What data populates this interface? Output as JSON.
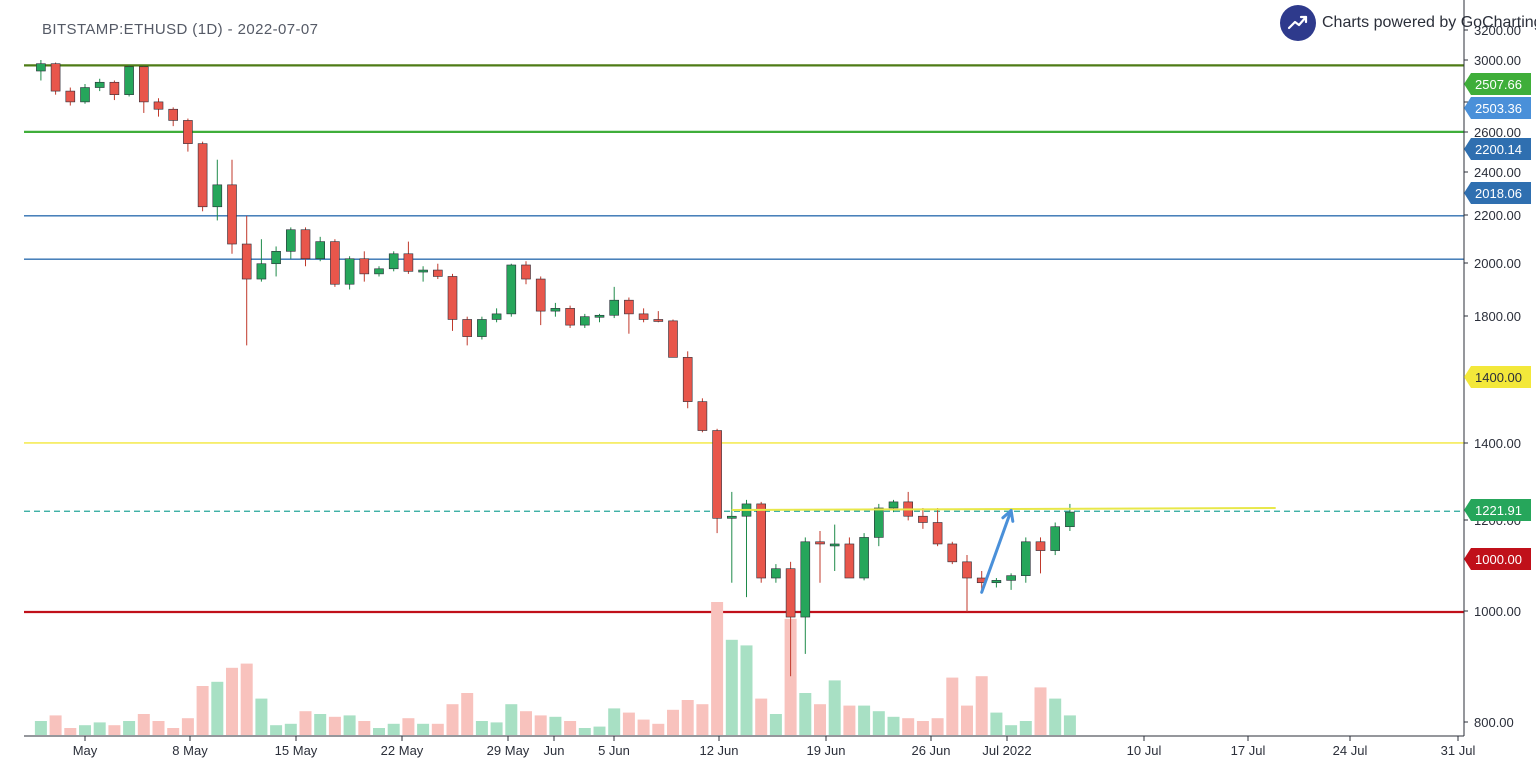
{
  "header": {
    "symbol_label": "BITSTAMP:ETHUSD (1D) - 2022-07-07",
    "powered_by": "Charts powered by GoCharting"
  },
  "chart_data": {
    "type": "candlestick",
    "y_axis_ticks": [
      "3200.00",
      "3000.00",
      "2800.00",
      "2600.00",
      "2400.00",
      "2200.00",
      "2000.00",
      "1800.00",
      "1400.00",
      "1200.00",
      "1000.00",
      "800.00"
    ],
    "x_axis_ticks": [
      "May",
      "8 May",
      "15 May",
      "22 May",
      "29 May",
      "Jun",
      "5 Jun",
      "12 Jun",
      "19 Jun",
      "26 Jun",
      "Jul 2022",
      "10 Jul",
      "17 Jul",
      "24 Jul",
      "31 Jul"
    ],
    "price_badges": [
      {
        "label": "2507.66",
        "color": "#3fae3a",
        "text_color": "#ffffff"
      },
      {
        "label": "2503.36",
        "color": "#4a90d9",
        "text_color": "#ffffff"
      },
      {
        "label": "2200.14",
        "color": "#2f6fb0",
        "text_color": "#ffffff"
      },
      {
        "label": "2018.06",
        "color": "#2f6fb0",
        "text_color": "#ffffff"
      },
      {
        "label": "1400.00",
        "color": "#f3e83a",
        "text_color": "#2b2f3a"
      },
      {
        "label": "1221.91",
        "color": "#26a65b",
        "text_color": "#ffffff"
      },
      {
        "label": "1000.00",
        "color": "#c0101a",
        "text_color": "#ffffff"
      }
    ],
    "horizontal_lines": [
      {
        "price": 2968,
        "color": "#4e7c16",
        "style": "solid"
      },
      {
        "price": 2600,
        "color": "#3fae3a",
        "style": "solid"
      },
      {
        "price": 2200,
        "color": "#2f6fb0",
        "style": "solid"
      },
      {
        "price": 2018,
        "color": "#2f6fb0",
        "style": "solid"
      },
      {
        "price": 1400,
        "color": "#f3e83a",
        "style": "solid"
      },
      {
        "price": 1222,
        "color": "#26a69a",
        "style": "dashed"
      },
      {
        "price": 1000,
        "color": "#c0101a",
        "style": "solid"
      }
    ],
    "trendline": {
      "from": [
        "2022-06-14",
        1225
      ],
      "to": [
        "2022-07-21",
        1230
      ],
      "color": "#e8e84a"
    },
    "arrow": {
      "from": [
        "2022-07-01",
        1040
      ],
      "to": [
        "2022-07-03",
        1224
      ],
      "color": "#4a90d9"
    },
    "colors": {
      "up": "#26a65b",
      "down": "#e8564b",
      "vol_up": "#a8e0c4",
      "vol_down": "#f8c2bd"
    },
    "candles": [
      {
        "date": "2022-04-28",
        "o": 2935,
        "h": 3000,
        "l": 2880,
        "c": 2978,
        "v": 0.1
      },
      {
        "date": "2022-04-29",
        "o": 2978,
        "h": 2985,
        "l": 2800,
        "c": 2820,
        "v": 0.14
      },
      {
        "date": "2022-04-30",
        "o": 2820,
        "h": 2840,
        "l": 2740,
        "c": 2760,
        "v": 0.05
      },
      {
        "date": "2022-05-01",
        "o": 2760,
        "h": 2860,
        "l": 2750,
        "c": 2840,
        "v": 0.07
      },
      {
        "date": "2022-05-02",
        "o": 2840,
        "h": 2890,
        "l": 2820,
        "c": 2870,
        "v": 0.09
      },
      {
        "date": "2022-05-03",
        "o": 2870,
        "h": 2880,
        "l": 2770,
        "c": 2800,
        "v": 0.07
      },
      {
        "date": "2022-05-04",
        "o": 2800,
        "h": 2970,
        "l": 2790,
        "c": 2960,
        "v": 0.1
      },
      {
        "date": "2022-05-05",
        "o": 2960,
        "h": 2965,
        "l": 2700,
        "c": 2760,
        "v": 0.15
      },
      {
        "date": "2022-05-06",
        "o": 2760,
        "h": 2780,
        "l": 2680,
        "c": 2720,
        "v": 0.1
      },
      {
        "date": "2022-05-07",
        "o": 2720,
        "h": 2730,
        "l": 2630,
        "c": 2660,
        "v": 0.05
      },
      {
        "date": "2022-05-08",
        "o": 2660,
        "h": 2670,
        "l": 2500,
        "c": 2540,
        "v": 0.12
      },
      {
        "date": "2022-05-09",
        "o": 2540,
        "h": 2550,
        "l": 2220,
        "c": 2240,
        "v": 0.35
      },
      {
        "date": "2022-05-10",
        "o": 2240,
        "h": 2460,
        "l": 2180,
        "c": 2340,
        "v": 0.38
      },
      {
        "date": "2022-05-11",
        "o": 2340,
        "h": 2460,
        "l": 2040,
        "c": 2080,
        "v": 0.48
      },
      {
        "date": "2022-05-12",
        "o": 2080,
        "h": 2200,
        "l": 1700,
        "c": 1940,
        "v": 0.51
      },
      {
        "date": "2022-05-13",
        "o": 1940,
        "h": 2100,
        "l": 1930,
        "c": 2000,
        "v": 0.26
      },
      {
        "date": "2022-05-14",
        "o": 2000,
        "h": 2070,
        "l": 1950,
        "c": 2050,
        "v": 0.07
      },
      {
        "date": "2022-05-15",
        "o": 2050,
        "h": 2150,
        "l": 2020,
        "c": 2140,
        "v": 0.08
      },
      {
        "date": "2022-05-16",
        "o": 2140,
        "h": 2150,
        "l": 1990,
        "c": 2020,
        "v": 0.17
      },
      {
        "date": "2022-05-17",
        "o": 2020,
        "h": 2110,
        "l": 2010,
        "c": 2090,
        "v": 0.15
      },
      {
        "date": "2022-05-18",
        "o": 2090,
        "h": 2100,
        "l": 1910,
        "c": 1920,
        "v": 0.13
      },
      {
        "date": "2022-05-19",
        "o": 1920,
        "h": 2030,
        "l": 1900,
        "c": 2020,
        "v": 0.14
      },
      {
        "date": "2022-05-20",
        "o": 2020,
        "h": 2050,
        "l": 1930,
        "c": 1960,
        "v": 0.1
      },
      {
        "date": "2022-05-21",
        "o": 1960,
        "h": 1990,
        "l": 1950,
        "c": 1980,
        "v": 0.05
      },
      {
        "date": "2022-05-22",
        "o": 1980,
        "h": 2050,
        "l": 1970,
        "c": 2040,
        "v": 0.08
      },
      {
        "date": "2022-05-23",
        "o": 2040,
        "h": 2090,
        "l": 1960,
        "c": 1970,
        "v": 0.12
      },
      {
        "date": "2022-05-24",
        "o": 1970,
        "h": 1990,
        "l": 1930,
        "c": 1975,
        "v": 0.08
      },
      {
        "date": "2022-05-25",
        "o": 1975,
        "h": 2000,
        "l": 1940,
        "c": 1950,
        "v": 0.08
      },
      {
        "date": "2022-05-26",
        "o": 1950,
        "h": 1960,
        "l": 1750,
        "c": 1790,
        "v": 0.22
      },
      {
        "date": "2022-05-27",
        "o": 1790,
        "h": 1800,
        "l": 1700,
        "c": 1730,
        "v": 0.3
      },
      {
        "date": "2022-05-28",
        "o": 1730,
        "h": 1800,
        "l": 1720,
        "c": 1790,
        "v": 0.1
      },
      {
        "date": "2022-05-29",
        "o": 1790,
        "h": 1830,
        "l": 1780,
        "c": 1810,
        "v": 0.09
      },
      {
        "date": "2022-05-30",
        "o": 1810,
        "h": 2000,
        "l": 1800,
        "c": 1995,
        "v": 0.22
      },
      {
        "date": "2022-05-31",
        "o": 1995,
        "h": 2010,
        "l": 1920,
        "c": 1940,
        "v": 0.17
      },
      {
        "date": "2022-06-01",
        "o": 1940,
        "h": 1950,
        "l": 1770,
        "c": 1820,
        "v": 0.14
      },
      {
        "date": "2022-06-02",
        "o": 1820,
        "h": 1850,
        "l": 1800,
        "c": 1830,
        "v": 0.13
      },
      {
        "date": "2022-06-03",
        "o": 1830,
        "h": 1840,
        "l": 1760,
        "c": 1770,
        "v": 0.1
      },
      {
        "date": "2022-06-04",
        "o": 1770,
        "h": 1810,
        "l": 1760,
        "c": 1800,
        "v": 0.05
      },
      {
        "date": "2022-06-05",
        "o": 1800,
        "h": 1810,
        "l": 1780,
        "c": 1805,
        "v": 0.06
      },
      {
        "date": "2022-06-06",
        "o": 1805,
        "h": 1910,
        "l": 1795,
        "c": 1860,
        "v": 0.19
      },
      {
        "date": "2022-06-07",
        "o": 1860,
        "h": 1870,
        "l": 1740,
        "c": 1810,
        "v": 0.16
      },
      {
        "date": "2022-06-08",
        "o": 1810,
        "h": 1830,
        "l": 1780,
        "c": 1790,
        "v": 0.11
      },
      {
        "date": "2022-06-09",
        "o": 1790,
        "h": 1820,
        "l": 1780,
        "c": 1785,
        "v": 0.08
      },
      {
        "date": "2022-06-10",
        "o": 1785,
        "h": 1790,
        "l": 1660,
        "c": 1660,
        "v": 0.18
      },
      {
        "date": "2022-06-11",
        "o": 1660,
        "h": 1680,
        "l": 1500,
        "c": 1520,
        "v": 0.25
      },
      {
        "date": "2022-06-12",
        "o": 1520,
        "h": 1530,
        "l": 1430,
        "c": 1435,
        "v": 0.22
      },
      {
        "date": "2022-06-13",
        "o": 1435,
        "h": 1440,
        "l": 1170,
        "c": 1205,
        "v": 0.95
      },
      {
        "date": "2022-06-14",
        "o": 1205,
        "h": 1270,
        "l": 1060,
        "c": 1210,
        "v": 0.68
      },
      {
        "date": "2022-06-15",
        "o": 1210,
        "h": 1250,
        "l": 1030,
        "c": 1240,
        "v": 0.64
      },
      {
        "date": "2022-06-16",
        "o": 1240,
        "h": 1245,
        "l": 1060,
        "c": 1070,
        "v": 0.26
      },
      {
        "date": "2022-06-17",
        "o": 1070,
        "h": 1100,
        "l": 1060,
        "c": 1090,
        "v": 0.15
      },
      {
        "date": "2022-06-18",
        "o": 1090,
        "h": 1105,
        "l": 880,
        "c": 990,
        "v": 0.83
      },
      {
        "date": "2022-06-19",
        "o": 990,
        "h": 1160,
        "l": 920,
        "c": 1150,
        "v": 0.3
      },
      {
        "date": "2022-06-20",
        "o": 1150,
        "h": 1175,
        "l": 1060,
        "c": 1145,
        "v": 0.22
      },
      {
        "date": "2022-06-21",
        "o": 1145,
        "h": 1190,
        "l": 1085,
        "c": 1145,
        "v": 0.39
      },
      {
        "date": "2022-06-22",
        "o": 1145,
        "h": 1160,
        "l": 1070,
        "c": 1070,
        "v": 0.21
      },
      {
        "date": "2022-06-23",
        "o": 1070,
        "h": 1170,
        "l": 1065,
        "c": 1160,
        "v": 0.21
      },
      {
        "date": "2022-06-24",
        "o": 1160,
        "h": 1240,
        "l": 1140,
        "c": 1230,
        "v": 0.17
      },
      {
        "date": "2022-06-25",
        "o": 1230,
        "h": 1250,
        "l": 1220,
        "c": 1245,
        "v": 0.13
      },
      {
        "date": "2022-06-26",
        "o": 1245,
        "h": 1270,
        "l": 1200,
        "c": 1210,
        "v": 0.12
      },
      {
        "date": "2022-06-27",
        "o": 1210,
        "h": 1230,
        "l": 1180,
        "c": 1195,
        "v": 0.1
      },
      {
        "date": "2022-06-28",
        "o": 1195,
        "h": 1230,
        "l": 1140,
        "c": 1145,
        "v": 0.12
      },
      {
        "date": "2022-06-29",
        "o": 1145,
        "h": 1150,
        "l": 1100,
        "c": 1105,
        "v": 0.41
      },
      {
        "date": "2022-06-30",
        "o": 1105,
        "h": 1120,
        "l": 1000,
        "c": 1070,
        "v": 0.21
      },
      {
        "date": "2022-07-01",
        "o": 1070,
        "h": 1085,
        "l": 1040,
        "c": 1060,
        "v": 0.42
      },
      {
        "date": "2022-07-02",
        "o": 1060,
        "h": 1070,
        "l": 1050,
        "c": 1065,
        "v": 0.16
      },
      {
        "date": "2022-07-03",
        "o": 1065,
        "h": 1080,
        "l": 1045,
        "c": 1075,
        "v": 0.07
      },
      {
        "date": "2022-07-04",
        "o": 1075,
        "h": 1160,
        "l": 1060,
        "c": 1150,
        "v": 0.1
      },
      {
        "date": "2022-07-05",
        "o": 1150,
        "h": 1160,
        "l": 1080,
        "c": 1130,
        "v": 0.34
      },
      {
        "date": "2022-07-06",
        "o": 1130,
        "h": 1195,
        "l": 1120,
        "c": 1185,
        "v": 0.26
      },
      {
        "date": "2022-07-07",
        "o": 1185,
        "h": 1240,
        "l": 1175,
        "c": 1220,
        "v": 0.14
      }
    ]
  }
}
